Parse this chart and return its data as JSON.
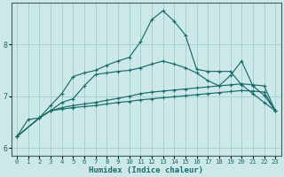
{
  "xlabel": "Humidex (Indice chaleur)",
  "bg_color": "#cce8e8",
  "line_color": "#1a6b6b",
  "grid_color": "#a8d0d0",
  "xlim": [
    -0.5,
    23.5
  ],
  "ylim": [
    5.85,
    8.8
  ],
  "xticks": [
    0,
    1,
    2,
    3,
    4,
    5,
    6,
    7,
    8,
    9,
    10,
    11,
    12,
    13,
    14,
    15,
    16,
    17,
    18,
    19,
    20,
    21,
    22,
    23
  ],
  "yticks": [
    6,
    7,
    8
  ],
  "line1_x": [
    0,
    1,
    2,
    3,
    4,
    5,
    6,
    7,
    8,
    9,
    10,
    11,
    12,
    13,
    14,
    15,
    16,
    17,
    18,
    19,
    20,
    21,
    22,
    23
  ],
  "line1_y": [
    6.22,
    6.55,
    6.58,
    6.82,
    7.05,
    7.38,
    7.45,
    7.5,
    7.6,
    7.68,
    7.75,
    8.05,
    8.48,
    8.65,
    8.45,
    8.18,
    7.52,
    7.48,
    7.48,
    7.48,
    7.22,
    7.05,
    6.88,
    6.72
  ],
  "line2_x": [
    0,
    2,
    3,
    4,
    5,
    6,
    7,
    8,
    9,
    10,
    11,
    12,
    13,
    14,
    15,
    16,
    17,
    18,
    19,
    20,
    21,
    22,
    23
  ],
  "line2_y": [
    6.22,
    6.58,
    6.72,
    6.88,
    6.95,
    7.2,
    7.42,
    7.45,
    7.48,
    7.5,
    7.55,
    7.62,
    7.68,
    7.62,
    7.55,
    7.45,
    7.3,
    7.2,
    7.4,
    7.68,
    7.2,
    7.02,
    6.72
  ],
  "line3_x": [
    0,
    2,
    3,
    4,
    5,
    6,
    7,
    8,
    9,
    10,
    11,
    12,
    13,
    14,
    15,
    16,
    17,
    18,
    19,
    20,
    21,
    22,
    23
  ],
  "line3_y": [
    6.22,
    6.58,
    6.72,
    6.78,
    6.82,
    6.85,
    6.88,
    6.92,
    6.96,
    7.0,
    7.05,
    7.08,
    7.1,
    7.12,
    7.14,
    7.16,
    7.18,
    7.2,
    7.22,
    7.24,
    7.22,
    7.2,
    6.72
  ],
  "line4_x": [
    0,
    2,
    3,
    4,
    5,
    6,
    7,
    8,
    9,
    10,
    11,
    12,
    13,
    14,
    15,
    16,
    17,
    18,
    19,
    20,
    21,
    22,
    23
  ],
  "line4_y": [
    6.22,
    6.58,
    6.72,
    6.75,
    6.78,
    6.8,
    6.82,
    6.85,
    6.88,
    6.9,
    6.93,
    6.95,
    6.97,
    6.99,
    7.01,
    7.03,
    7.05,
    7.07,
    7.09,
    7.11,
    7.1,
    7.08,
    6.72
  ]
}
